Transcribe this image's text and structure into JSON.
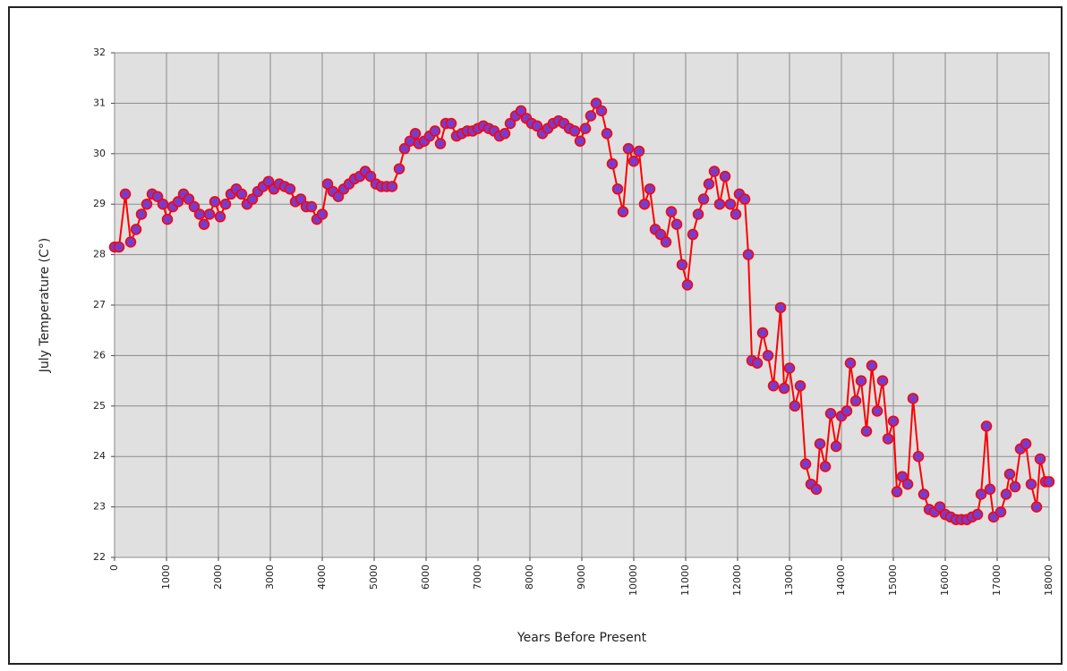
{
  "chart_data": {
    "type": "line",
    "x_label": "Years Before Present",
    "y_label": "July Temperature (C°)",
    "xlim": [
      0,
      18000
    ],
    "xticks": [
      0,
      1000,
      2000,
      3000,
      4000,
      5000,
      6000,
      7000,
      8000,
      9000,
      10000,
      11000,
      12000,
      13000,
      14000,
      15000,
      16000,
      17000,
      18000
    ],
    "ylim": [
      22,
      32
    ],
    "yticks": [
      22,
      23,
      24,
      25,
      26,
      27,
      28,
      29,
      30,
      31,
      32
    ],
    "grid": true,
    "series": [
      {
        "color": "#ff0000",
        "marker_color": "#7a3cc8",
        "x": [
          0,
          86,
          207,
          310,
          414,
          517,
          621,
          724,
          828,
          931,
          1017,
          1121,
          1224,
          1328,
          1431,
          1534,
          1638,
          1724,
          1828,
          1931,
          2034,
          2138,
          2241,
          2345,
          2448,
          2552,
          2655,
          2759,
          2862,
          2966,
          3069,
          3172,
          3276,
          3379,
          3483,
          3586,
          3690,
          3793,
          3897,
          4000,
          4103,
          4207,
          4310,
          4414,
          4517,
          4621,
          4724,
          4828,
          4931,
          5034,
          5138,
          5241,
          5345,
          5483,
          5586,
          5690,
          5793,
          5862,
          5966,
          6069,
          6172,
          6276,
          6379,
          6483,
          6586,
          6690,
          6793,
          6897,
          7000,
          7103,
          7207,
          7310,
          7414,
          7517,
          7621,
          7724,
          7828,
          7931,
          8034,
          8138,
          8241,
          8345,
          8448,
          8552,
          8655,
          8759,
          8862,
          8966,
          9069,
          9172,
          9276,
          9379,
          9483,
          9586,
          9690,
          9793,
          9897,
          10000,
          10103,
          10207,
          10310,
          10414,
          10517,
          10621,
          10724,
          10828,
          10931,
          11034,
          11138,
          11241,
          11345,
          11448,
          11552,
          11655,
          11759,
          11862,
          11966,
          12034,
          12138,
          12207,
          12276,
          12379,
          12483,
          12586,
          12690,
          12828,
          12897,
          13000,
          13103,
          13207,
          13310,
          13414,
          13517,
          13586,
          13690,
          13793,
          13897,
          14000,
          14103,
          14172,
          14276,
          14379,
          14483,
          14586,
          14690,
          14793,
          14897,
          15000,
          15069,
          15172,
          15276,
          15379,
          15483,
          15586,
          15690,
          15793,
          15897,
          16000,
          16103,
          16207,
          16310,
          16414,
          16517,
          16621,
          16690,
          16793,
          16862,
          16931,
          17069,
          17172,
          17241,
          17345,
          17448,
          17552,
          17655,
          17759,
          17828,
          17931,
          18000
        ],
        "values": [
          28.15,
          28.15,
          29.2,
          28.25,
          28.5,
          28.8,
          29.0,
          29.2,
          29.15,
          29.0,
          28.7,
          28.95,
          29.05,
          29.2,
          29.1,
          28.95,
          28.8,
          28.6,
          28.8,
          29.05,
          28.75,
          29.0,
          29.2,
          29.3,
          29.2,
          29.0,
          29.1,
          29.25,
          29.35,
          29.45,
          29.3,
          29.4,
          29.35,
          29.3,
          29.05,
          29.1,
          28.95,
          28.95,
          28.7,
          28.8,
          29.4,
          29.25,
          29.15,
          29.3,
          29.4,
          29.5,
          29.55,
          29.65,
          29.55,
          29.4,
          29.35,
          29.35,
          29.35,
          29.7,
          30.1,
          30.25,
          30.4,
          30.2,
          30.25,
          30.35,
          30.45,
          30.2,
          30.6,
          30.6,
          30.35,
          30.4,
          30.45,
          30.45,
          30.5,
          30.55,
          30.5,
          30.45,
          30.35,
          30.4,
          30.6,
          30.75,
          30.85,
          30.7,
          30.6,
          30.55,
          30.4,
          30.5,
          30.6,
          30.65,
          30.6,
          30.5,
          30.45,
          30.25,
          30.5,
          30.75,
          31.0,
          30.85,
          30.4,
          29.8,
          29.3,
          28.85,
          30.1,
          29.85,
          30.05,
          29.0,
          29.3,
          28.5,
          28.4,
          28.25,
          28.85,
          28.6,
          27.8,
          27.4,
          28.4,
          28.8,
          29.1,
          29.4,
          29.65,
          29.0,
          29.55,
          29.0,
          28.8,
          29.2,
          29.1,
          28.0,
          25.9,
          25.85,
          26.45,
          26.0,
          25.4,
          26.95,
          25.35,
          25.75,
          25.0,
          25.4,
          23.85,
          23.45,
          23.35,
          24.25,
          23.8,
          24.85,
          24.2,
          24.8,
          24.9,
          25.85,
          25.1,
          25.5,
          24.5,
          25.8,
          24.9,
          25.5,
          24.35,
          24.7,
          23.3,
          23.6,
          23.45,
          25.15,
          24.0,
          23.25,
          22.95,
          22.9,
          23.0,
          22.85,
          22.8,
          22.75,
          22.75,
          22.75,
          22.8,
          22.85,
          23.25,
          24.6,
          23.35,
          22.8,
          22.9,
          23.25,
          23.65,
          23.4,
          24.15,
          24.25,
          23.45,
          23.0,
          23.95,
          23.5,
          23.5
        ]
      }
    ]
  }
}
